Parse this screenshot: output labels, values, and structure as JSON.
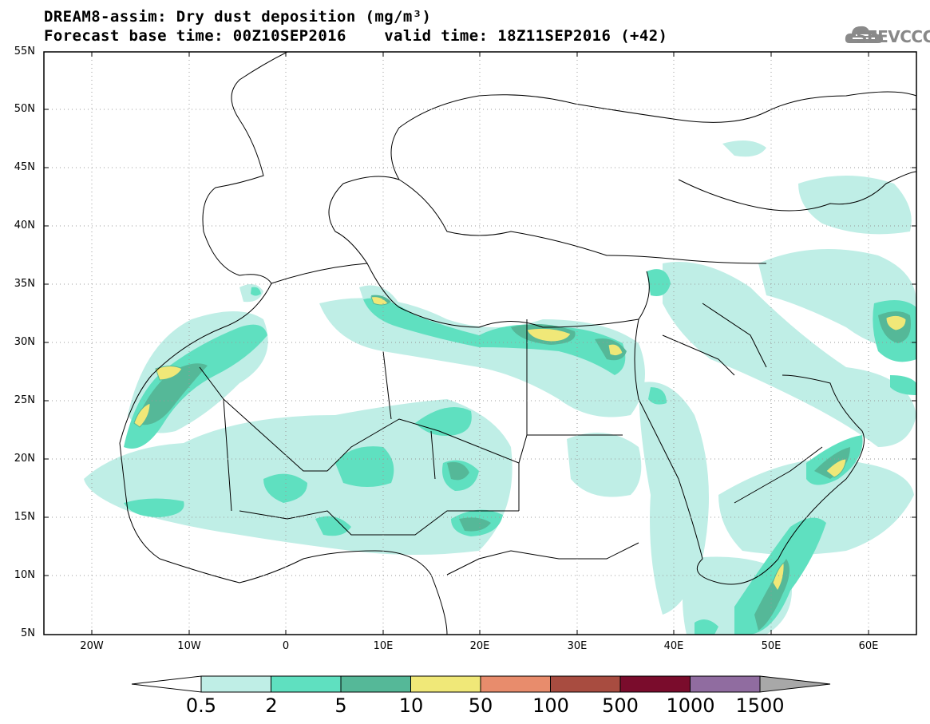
{
  "header": {
    "title_line1": "DREAM8-assim: Dry dust deposition (mg/m³)",
    "forecast_base_label": "Forecast base time: 00Z10SEP2016",
    "valid_time_label": "valid time: 18Z11SEP2016 (+42)",
    "logo_text": "SEEVCCC"
  },
  "map": {
    "lon_range": [
      -25,
      65
    ],
    "lat_range": [
      5,
      55
    ],
    "lat_ticks": [
      "55N",
      "50N",
      "45N",
      "40N",
      "35N",
      "30N",
      "25N",
      "20N",
      "15N",
      "10N",
      "5N"
    ],
    "lon_ticks": [
      "20W",
      "10W",
      "0",
      "10E",
      "20E",
      "30E",
      "40E",
      "50E",
      "60E"
    ],
    "grid": "dotted"
  },
  "legend": {
    "labels": [
      "0.5",
      "2",
      "5",
      "10",
      "50",
      "100",
      "500",
      "1000",
      "1500"
    ],
    "colors": [
      "#bfeee6",
      "#5fe0c0",
      "#55b898",
      "#f0e878",
      "#e88c6c",
      "#a84c40",
      "#7a0c2c",
      "#906cA0",
      "#a8a8a8"
    ]
  }
}
